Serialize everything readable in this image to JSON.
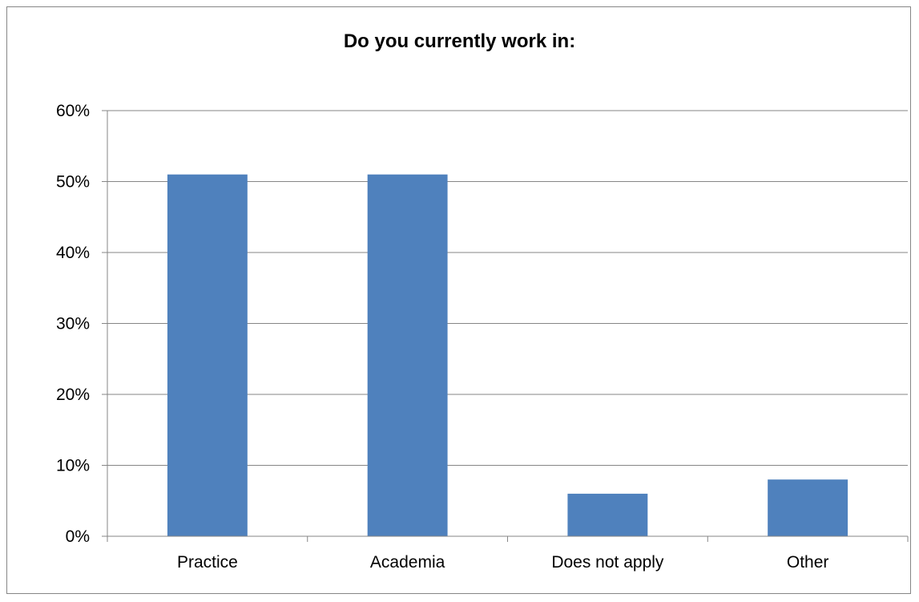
{
  "chart_data": {
    "type": "bar",
    "title": "Do you currently work in:",
    "categories": [
      "Practice",
      "Academia",
      "Does not apply",
      "Other"
    ],
    "values": [
      51,
      51,
      6,
      8
    ],
    "ylim": [
      0,
      60
    ],
    "yticks": [
      0,
      10,
      20,
      30,
      40,
      50,
      60
    ],
    "ytick_labels": [
      "0%",
      "10%",
      "20%",
      "30%",
      "40%",
      "50%",
      "60%"
    ],
    "xlabel": "",
    "ylabel": "",
    "grid": true,
    "legend": "none",
    "bar_color": "#4F81BD",
    "gridline_color": "#868686"
  }
}
